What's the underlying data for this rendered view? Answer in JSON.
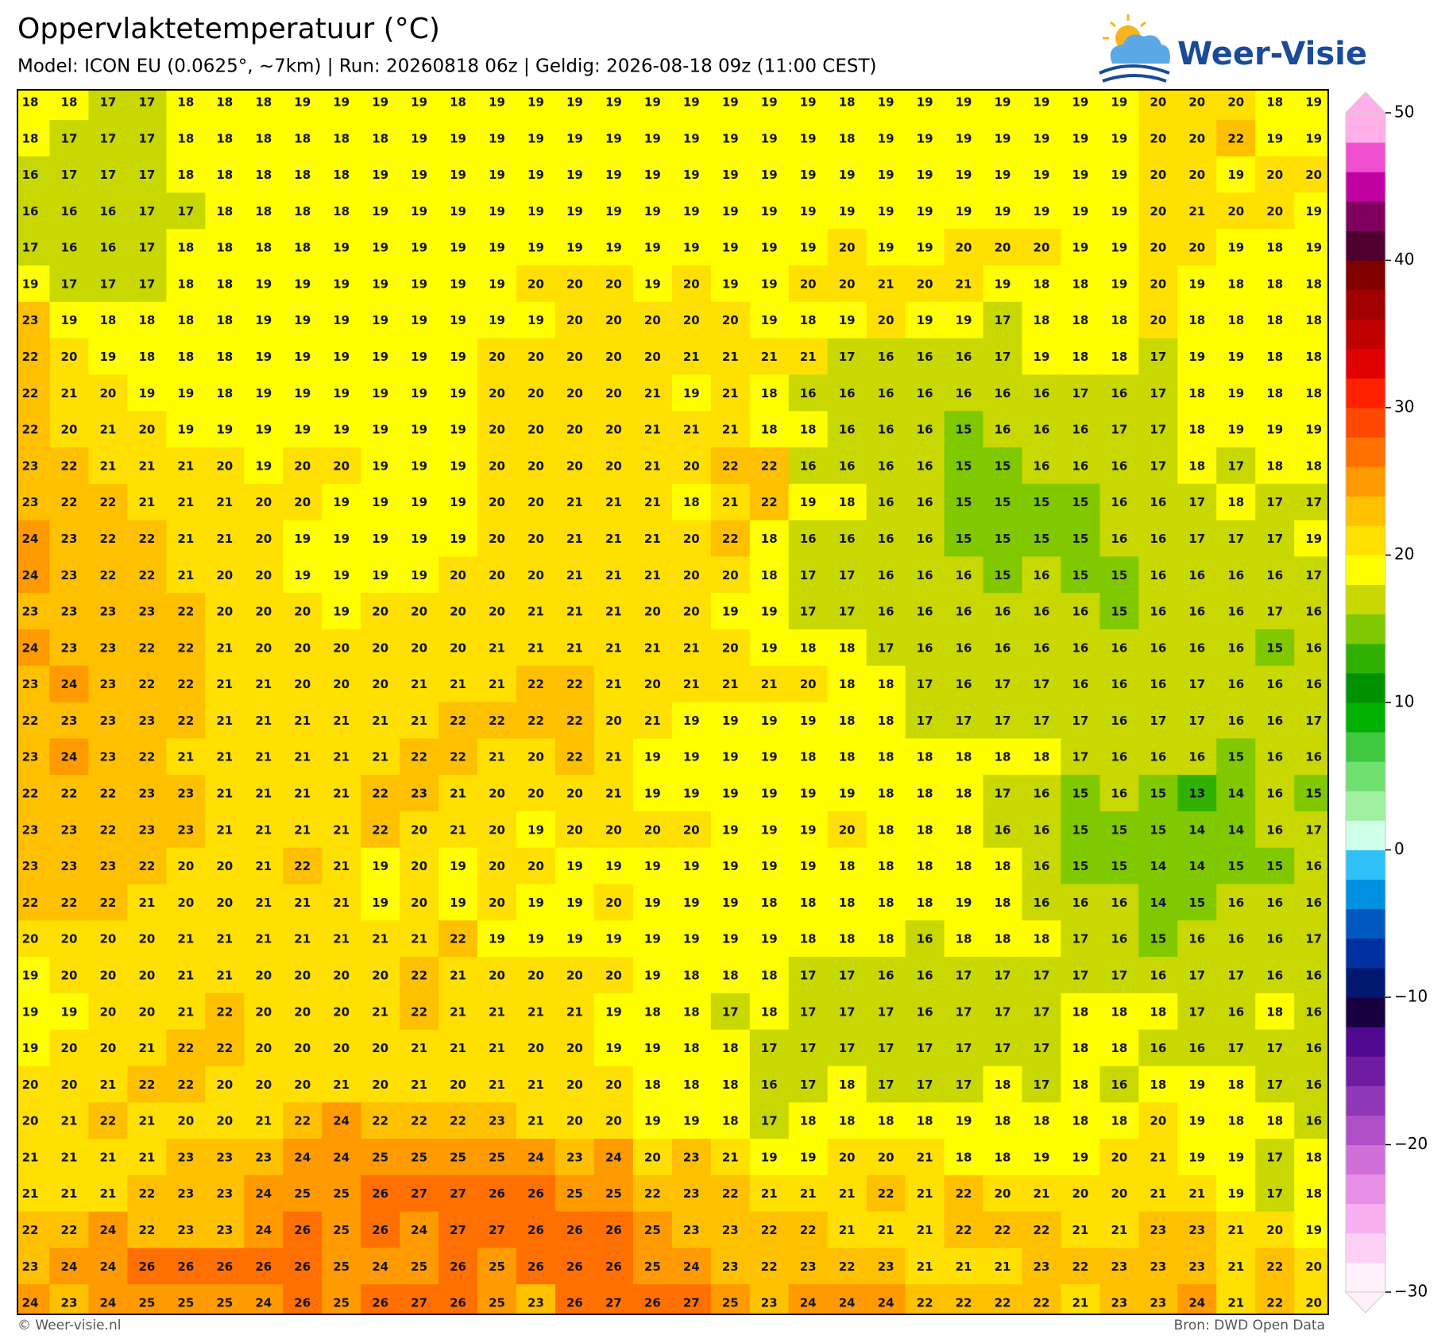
{
  "header": {
    "title": "Oppervlaktetemperatuur (°C)",
    "subtitle": "Model: ICON EU (0.0625°, ~7km)  |  Run: 20260818 06z  |  Geldig: 2026-08-18 09z (11:00 CEST)"
  },
  "logo": {
    "text": "Weer-Visie"
  },
  "grid": {
    "values": [
      [
        18,
        18,
        17,
        17,
        18,
        18,
        18,
        19,
        19,
        19,
        19,
        18,
        19,
        19,
        19,
        19,
        19,
        19,
        19,
        19,
        19,
        18,
        19,
        19,
        19,
        19,
        19,
        19,
        19,
        20,
        20,
        20,
        18,
        19
      ],
      [
        18,
        17,
        17,
        17,
        18,
        18,
        18,
        18,
        18,
        18,
        19,
        19,
        19,
        19,
        19,
        19,
        19,
        19,
        19,
        19,
        19,
        18,
        19,
        19,
        19,
        19,
        19,
        19,
        19,
        20,
        20,
        22,
        19,
        19
      ],
      [
        16,
        17,
        17,
        17,
        18,
        18,
        18,
        18,
        18,
        19,
        19,
        19,
        19,
        19,
        19,
        19,
        19,
        19,
        19,
        19,
        19,
        19,
        19,
        19,
        19,
        19,
        19,
        19,
        19,
        20,
        20,
        19,
        20,
        20
      ],
      [
        16,
        16,
        16,
        17,
        17,
        18,
        18,
        18,
        18,
        19,
        19,
        19,
        19,
        19,
        19,
        19,
        19,
        19,
        19,
        19,
        19,
        19,
        19,
        19,
        19,
        19,
        19,
        19,
        19,
        20,
        21,
        20,
        20,
        19
      ],
      [
        17,
        16,
        16,
        17,
        18,
        18,
        18,
        18,
        19,
        19,
        19,
        19,
        19,
        19,
        19,
        19,
        19,
        19,
        19,
        19,
        19,
        20,
        19,
        19,
        20,
        20,
        20,
        19,
        19,
        20,
        20,
        19,
        18,
        19
      ],
      [
        19,
        17,
        17,
        17,
        18,
        18,
        19,
        19,
        19,
        19,
        19,
        19,
        19,
        20,
        20,
        20,
        19,
        20,
        19,
        19,
        20,
        20,
        21,
        20,
        21,
        19,
        18,
        18,
        19,
        20,
        19,
        18,
        18,
        18
      ],
      [
        23,
        19,
        18,
        18,
        18,
        18,
        19,
        19,
        19,
        19,
        19,
        19,
        19,
        19,
        20,
        20,
        20,
        20,
        20,
        19,
        18,
        19,
        20,
        19,
        19,
        17,
        18,
        18,
        18,
        20,
        18,
        18,
        18,
        18
      ],
      [
        22,
        20,
        19,
        18,
        18,
        18,
        19,
        19,
        19,
        19,
        19,
        19,
        20,
        20,
        20,
        20,
        20,
        21,
        21,
        21,
        21,
        17,
        16,
        16,
        16,
        17,
        19,
        18,
        18,
        17,
        19,
        19,
        18,
        18
      ],
      [
        22,
        21,
        20,
        19,
        19,
        18,
        19,
        19,
        19,
        19,
        19,
        19,
        20,
        20,
        20,
        20,
        21,
        19,
        21,
        18,
        16,
        16,
        16,
        16,
        16,
        16,
        16,
        17,
        16,
        17,
        18,
        19,
        18,
        18
      ],
      [
        22,
        20,
        21,
        20,
        19,
        19,
        19,
        19,
        19,
        19,
        19,
        19,
        20,
        20,
        20,
        20,
        21,
        21,
        21,
        18,
        18,
        16,
        16,
        16,
        15,
        16,
        16,
        16,
        17,
        17,
        18,
        19,
        19,
        19
      ],
      [
        23,
        22,
        21,
        21,
        21,
        20,
        19,
        20,
        20,
        19,
        19,
        19,
        20,
        20,
        20,
        20,
        21,
        20,
        22,
        22,
        16,
        16,
        16,
        16,
        15,
        15,
        16,
        16,
        16,
        17,
        18,
        17,
        18,
        18
      ],
      [
        23,
        22,
        22,
        21,
        21,
        21,
        20,
        20,
        19,
        19,
        19,
        19,
        20,
        20,
        21,
        21,
        21,
        18,
        21,
        22,
        19,
        18,
        16,
        16,
        15,
        15,
        15,
        15,
        16,
        16,
        17,
        18,
        17,
        17
      ],
      [
        24,
        23,
        22,
        22,
        21,
        21,
        20,
        19,
        19,
        19,
        19,
        19,
        20,
        20,
        21,
        21,
        21,
        20,
        22,
        18,
        16,
        16,
        16,
        16,
        15,
        15,
        15,
        15,
        16,
        16,
        17,
        17,
        17,
        19
      ],
      [
        24,
        23,
        22,
        22,
        21,
        20,
        20,
        19,
        19,
        19,
        19,
        20,
        20,
        20,
        21,
        21,
        21,
        20,
        20,
        18,
        17,
        17,
        16,
        16,
        16,
        15,
        16,
        15,
        15,
        16,
        16,
        16,
        16,
        17
      ],
      [
        23,
        23,
        23,
        23,
        22,
        20,
        20,
        20,
        19,
        20,
        20,
        20,
        20,
        21,
        21,
        21,
        20,
        20,
        19,
        19,
        17,
        17,
        16,
        16,
        16,
        16,
        16,
        16,
        15,
        16,
        16,
        16,
        17,
        16
      ],
      [
        24,
        23,
        23,
        22,
        22,
        21,
        20,
        20,
        20,
        20,
        20,
        20,
        21,
        21,
        21,
        21,
        21,
        21,
        20,
        19,
        18,
        18,
        17,
        16,
        16,
        16,
        16,
        16,
        16,
        16,
        16,
        16,
        15,
        16
      ],
      [
        23,
        24,
        23,
        22,
        22,
        21,
        21,
        20,
        20,
        20,
        21,
        21,
        21,
        22,
        22,
        21,
        20,
        21,
        21,
        21,
        20,
        18,
        18,
        17,
        16,
        17,
        17,
        16,
        16,
        16,
        17,
        16,
        16,
        16
      ],
      [
        22,
        23,
        23,
        23,
        22,
        21,
        21,
        21,
        21,
        21,
        21,
        22,
        22,
        22,
        22,
        20,
        21,
        19,
        19,
        19,
        19,
        18,
        18,
        17,
        17,
        17,
        17,
        17,
        16,
        17,
        17,
        16,
        16,
        17
      ],
      [
        23,
        24,
        23,
        22,
        21,
        21,
        21,
        21,
        21,
        21,
        22,
        22,
        21,
        20,
        22,
        21,
        19,
        19,
        19,
        19,
        18,
        18,
        18,
        18,
        18,
        18,
        18,
        17,
        16,
        16,
        16,
        15,
        16,
        16
      ],
      [
        22,
        22,
        22,
        23,
        23,
        21,
        21,
        21,
        21,
        22,
        23,
        21,
        20,
        20,
        20,
        21,
        19,
        19,
        19,
        19,
        19,
        19,
        18,
        18,
        18,
        17,
        16,
        15,
        16,
        15,
        13,
        14,
        16,
        15
      ],
      [
        23,
        23,
        22,
        23,
        23,
        21,
        21,
        21,
        21,
        22,
        20,
        21,
        20,
        19,
        20,
        20,
        20,
        20,
        19,
        19,
        19,
        20,
        18,
        18,
        18,
        16,
        16,
        15,
        15,
        15,
        14,
        14,
        16,
        17
      ],
      [
        23,
        23,
        23,
        22,
        20,
        20,
        21,
        22,
        21,
        19,
        20,
        19,
        20,
        20,
        19,
        19,
        19,
        19,
        19,
        19,
        19,
        18,
        18,
        18,
        18,
        18,
        16,
        15,
        15,
        14,
        14,
        15,
        15,
        16
      ],
      [
        22,
        22,
        22,
        21,
        20,
        20,
        21,
        21,
        21,
        19,
        20,
        19,
        20,
        19,
        19,
        20,
        19,
        19,
        19,
        18,
        18,
        18,
        18,
        18,
        19,
        18,
        16,
        16,
        16,
        14,
        15,
        16,
        16,
        16
      ],
      [
        20,
        20,
        20,
        20,
        21,
        21,
        21,
        21,
        21,
        21,
        21,
        22,
        19,
        19,
        19,
        19,
        19,
        19,
        19,
        19,
        18,
        18,
        18,
        16,
        18,
        18,
        18,
        17,
        16,
        15,
        16,
        16,
        16,
        17
      ],
      [
        19,
        20,
        20,
        20,
        21,
        21,
        20,
        20,
        20,
        20,
        22,
        21,
        20,
        20,
        20,
        20,
        19,
        18,
        18,
        18,
        17,
        17,
        16,
        16,
        17,
        17,
        17,
        17,
        17,
        16,
        17,
        17,
        16,
        16
      ],
      [
        19,
        19,
        20,
        20,
        21,
        22,
        20,
        20,
        20,
        21,
        22,
        21,
        21,
        21,
        21,
        19,
        18,
        18,
        17,
        18,
        17,
        17,
        17,
        16,
        17,
        17,
        17,
        18,
        18,
        18,
        17,
        16,
        18,
        16
      ],
      [
        19,
        20,
        20,
        21,
        22,
        22,
        20,
        20,
        20,
        20,
        21,
        21,
        21,
        20,
        20,
        19,
        19,
        18,
        18,
        17,
        17,
        17,
        17,
        17,
        17,
        17,
        17,
        18,
        18,
        16,
        16,
        17,
        17,
        16
      ],
      [
        20,
        20,
        21,
        22,
        22,
        20,
        20,
        20,
        21,
        20,
        21,
        20,
        21,
        21,
        20,
        20,
        18,
        18,
        18,
        16,
        17,
        18,
        17,
        17,
        17,
        18,
        17,
        18,
        16,
        18,
        19,
        18,
        17,
        16
      ],
      [
        20,
        21,
        22,
        21,
        20,
        20,
        21,
        22,
        24,
        22,
        22,
        22,
        23,
        21,
        20,
        20,
        19,
        19,
        18,
        17,
        18,
        18,
        18,
        18,
        19,
        18,
        18,
        18,
        18,
        20,
        19,
        18,
        18,
        16
      ],
      [
        21,
        21,
        21,
        21,
        23,
        23,
        23,
        24,
        24,
        25,
        25,
        25,
        25,
        24,
        23,
        24,
        20,
        23,
        21,
        19,
        19,
        20,
        20,
        21,
        18,
        18,
        19,
        19,
        20,
        21,
        19,
        19,
        17,
        18
      ],
      [
        21,
        21,
        21,
        22,
        23,
        23,
        24,
        25,
        25,
        26,
        27,
        27,
        26,
        26,
        25,
        25,
        22,
        23,
        22,
        21,
        21,
        21,
        22,
        21,
        22,
        20,
        21,
        20,
        20,
        21,
        21,
        19,
        17,
        18
      ],
      [
        22,
        22,
        24,
        22,
        23,
        23,
        24,
        26,
        25,
        26,
        24,
        27,
        27,
        26,
        26,
        26,
        25,
        23,
        23,
        22,
        22,
        21,
        21,
        21,
        22,
        22,
        22,
        21,
        21,
        23,
        23,
        21,
        20,
        19
      ],
      [
        23,
        24,
        24,
        26,
        26,
        26,
        26,
        26,
        25,
        24,
        25,
        26,
        25,
        26,
        26,
        26,
        25,
        24,
        23,
        22,
        23,
        22,
        23,
        21,
        21,
        21,
        23,
        22,
        23,
        23,
        23,
        21,
        22,
        20
      ],
      [
        24,
        23,
        24,
        25,
        25,
        25,
        24,
        26,
        25,
        26,
        27,
        26,
        25,
        23,
        26,
        27,
        26,
        27,
        25,
        23,
        24,
        24,
        24,
        22,
        22,
        22,
        22,
        21,
        23,
        23,
        24,
        21,
        22,
        20
      ]
    ]
  },
  "colorbar": {
    "lim": [
      -30,
      50
    ],
    "ticks": [
      50,
      40,
      30,
      20,
      10,
      0,
      {
        "value": -10,
        "label": "−10"
      },
      {
        "value": -20,
        "label": "−20"
      },
      {
        "value": -30,
        "label": "−30"
      }
    ],
    "colors": [
      "#fff0fa",
      "#ffd0f5",
      "#f8b0f0",
      "#e890e8",
      "#d070d8",
      "#b050c8",
      "#9038b8",
      "#701ca0",
      "#500890",
      "#180040",
      "#001870",
      "#0030a0",
      "#0058c0",
      "#0090e0",
      "#30c0f8",
      "#d0ffe8",
      "#a0f0a0",
      "#70e070",
      "#40c840",
      "#00b000",
      "#009000",
      "#30b000",
      "#80c800",
      "#c8d800",
      "#ffff00",
      "#ffe000",
      "#ffc000",
      "#ff9a00",
      "#ff7000",
      "#ff4800",
      "#ff2000",
      "#e00000",
      "#c00000",
      "#a00000",
      "#800000",
      "#500030",
      "#800060",
      "#c000a0",
      "#f050d0",
      "#ffb0e8"
    ]
  },
  "footer": {
    "left": "© Weer-visie.nl",
    "right": "Bron: DWD Open Data"
  }
}
